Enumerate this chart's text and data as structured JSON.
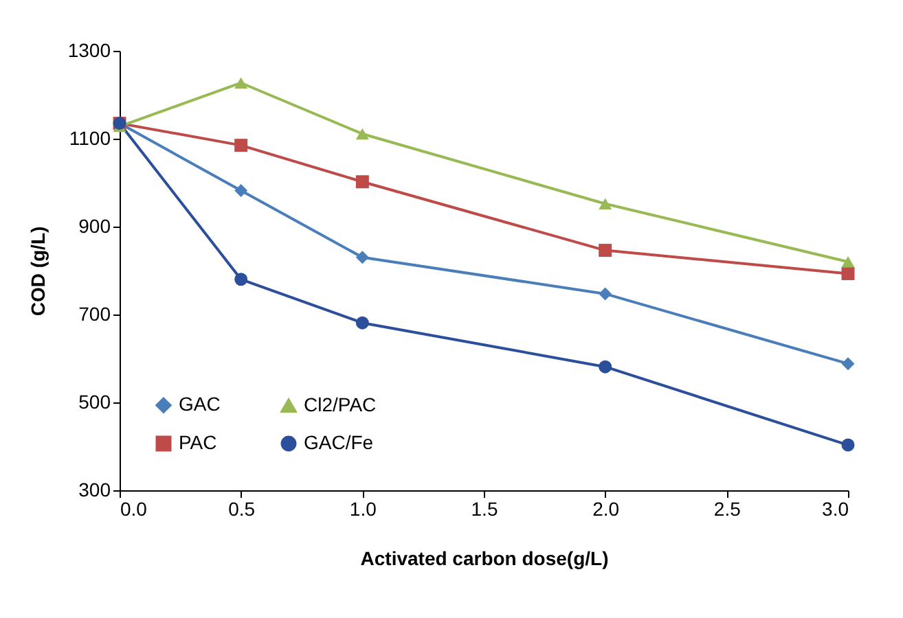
{
  "chart_data": {
    "type": "line",
    "xlabel": "Activated carbon dose(g/L)",
    "ylabel": "COD  (g/L)",
    "x": [
      0,
      0.5,
      1,
      2,
      3
    ],
    "series": [
      {
        "name": "GAC",
        "color": "#4a7ebb",
        "marker": "diamond",
        "values": [
          1135,
          982,
          830,
          747,
          588
        ]
      },
      {
        "name": "PAC",
        "color": "#be4b48",
        "marker": "square",
        "values": [
          1135,
          1085,
          1002,
          846,
          793
        ]
      },
      {
        "name": "Cl2/PAC",
        "color": "#98b954",
        "marker": "triangle",
        "values": [
          1128,
          1227,
          1111,
          952,
          820
        ]
      },
      {
        "name": "GAC/Fe",
        "color": "#2c4f9c",
        "marker": "circle",
        "values": [
          1135,
          780,
          681,
          581,
          403
        ]
      }
    ],
    "xlim": [
      0,
      3
    ],
    "xticks": [
      {
        "value": 0,
        "label": "0.0"
      },
      {
        "value": 0.5,
        "label": "0.5"
      },
      {
        "value": 1,
        "label": "1.0"
      },
      {
        "value": 1.5,
        "label": "1.5"
      },
      {
        "value": 2,
        "label": "2.0"
      },
      {
        "value": 2.5,
        "label": "2.5"
      },
      {
        "value": 3,
        "label": "3.0"
      }
    ],
    "ylim": [
      300,
      1300
    ],
    "yticks": [
      300,
      500,
      700,
      900,
      1100,
      1300
    ],
    "grid": false,
    "legend": "bottom left",
    "line_style": "solid"
  }
}
